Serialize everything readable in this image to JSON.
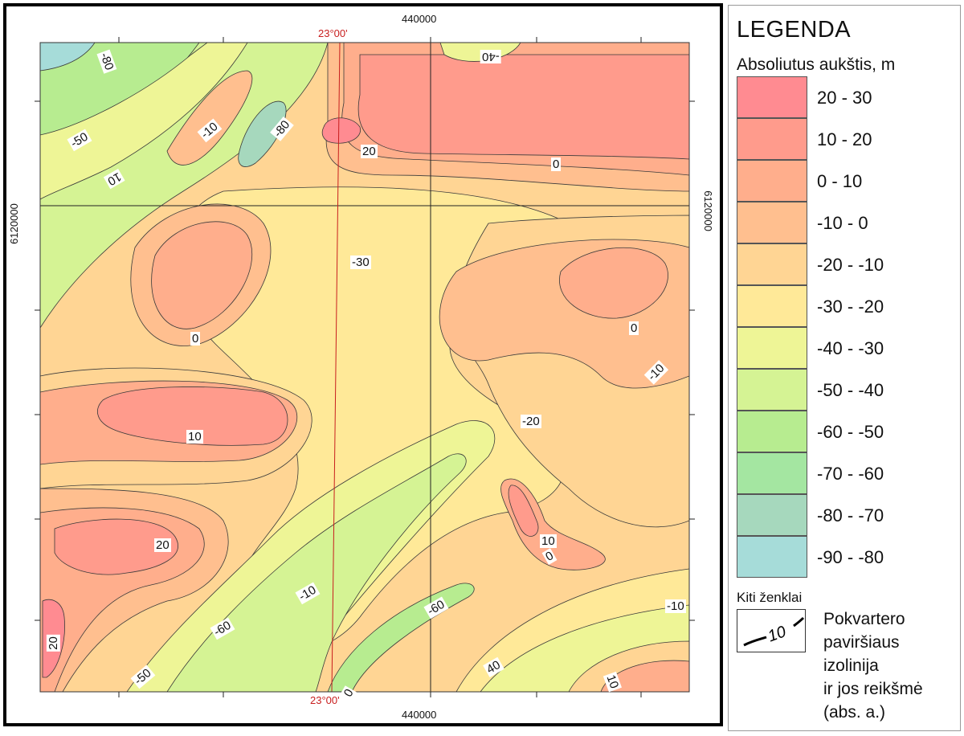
{
  "map": {
    "coords": {
      "top_x": "440000",
      "top_lon": "23°00'",
      "bottom_x": "440000",
      "bottom_lon": "23°00'",
      "left_y": "6120000",
      "right_y": "6120000"
    },
    "contour_labels": [
      "-80",
      "-40",
      "-50",
      "-10",
      "-80",
      "20",
      "10",
      "0",
      "-30",
      "0",
      "0",
      "-10",
      "10",
      "-20",
      "10",
      "0",
      "20",
      "-10",
      "-60",
      "-10",
      "20",
      "-60",
      "-50",
      "0",
      "40",
      "10"
    ],
    "colors": {
      "c20_30": "#ff8b91",
      "c10_20": "#ff9b8c",
      "c0_10": "#ffae8c",
      "cm10_0": "#ffbf8f",
      "cm20_m10": "#ffd594",
      "cm30_m20": "#ffe998",
      "cm40_m30": "#eef596",
      "cm50_m40": "#d5f394",
      "cm60_m50": "#b7ec90",
      "cm70_m60": "#a4e6a1",
      "cm80_m70": "#a6d8bd",
      "cm90_m80": "#a6dcd9"
    }
  },
  "legend": {
    "title": "LEGENDA",
    "subtitle": "Absoliutus aukštis, m",
    "items": [
      {
        "label": "20 - 30",
        "color": "#ff8b91"
      },
      {
        "label": "10 - 20",
        "color": "#ff9b8c"
      },
      {
        "label": "0 - 10",
        "color": "#ffae8c"
      },
      {
        "label": "-10 - 0",
        "color": "#ffbf8f"
      },
      {
        "label": "-20 - -10",
        "color": "#ffd594"
      },
      {
        "label": "-30 - -20",
        "color": "#ffe998"
      },
      {
        "label": "-40 - -30",
        "color": "#eef596"
      },
      {
        "label": "-50 - -40",
        "color": "#d5f394"
      },
      {
        "label": "-60 - -50",
        "color": "#b7ec90"
      },
      {
        "label": "-70 - -60",
        "color": "#a4e6a1"
      },
      {
        "label": "-80 - -70",
        "color": "#a6d8bd"
      },
      {
        "label": "-90 - -80",
        "color": "#a6dcd9"
      }
    ],
    "other_title": "Kiti ženklai",
    "sample_value": "10",
    "iso_lines": [
      "Pokvartero",
      "paviršiaus",
      "izolinija",
      "ir jos reikšmė",
      "(abs. a.)"
    ]
  }
}
